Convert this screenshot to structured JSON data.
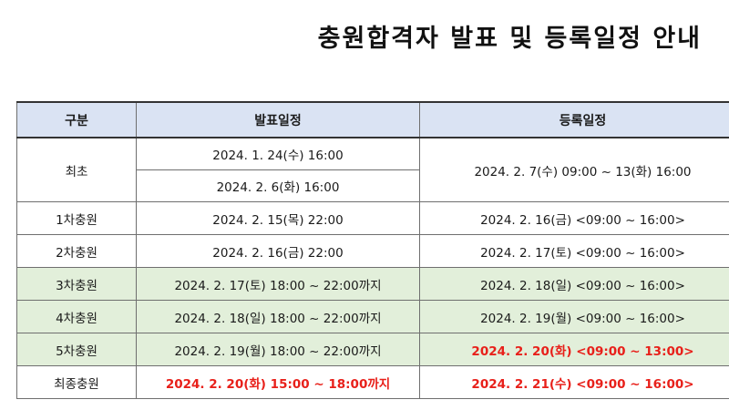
{
  "title": "충원합격자 발표 및 등록일정 안내",
  "table": {
    "headers": [
      "구분",
      "발표일정",
      "등록일정"
    ],
    "rows": [
      {
        "category": "최초",
        "announcements": [
          "2024. 1. 24(수) 16:00",
          "2024. 2. 6(화) 16:00"
        ],
        "registration": "2024. 2. 7(수) 09:00 ~ 13(화) 16:00"
      },
      {
        "category": "1차충원",
        "announcement": "2024. 2. 15(목) 22:00",
        "registration": "2024. 2. 16(금) <09:00 ~ 16:00>"
      },
      {
        "category": "2차충원",
        "announcement": "2024. 2. 16(금) 22:00",
        "registration": "2024. 2. 17(토) <09:00 ~ 16:00>"
      },
      {
        "category": "3차충원",
        "announcement": "2024. 2. 17(토) 18:00 ~ 22:00까지",
        "registration": "2024. 2. 18(일) <09:00 ~ 16:00>"
      },
      {
        "category": "4차충원",
        "announcement": "2024. 2. 18(일) 18:00 ~ 22:00까지",
        "registration": "2024. 2. 19(월) <09:00 ~ 16:00>"
      },
      {
        "category": "5차충원",
        "announcement": "2024. 2. 19(월) 18:00 ~ 22:00까지",
        "registration": "2024. 2. 20(화) <09:00 ~ 13:00>"
      },
      {
        "category": "최종충원",
        "announcement": "2024. 2. 20(화) 15:00 ~ 18:00까지",
        "registration": "2024. 2. 21(수) <09:00 ~ 16:00>"
      }
    ]
  },
  "colors": {
    "header_background": "#dae3f3",
    "highlight_row_background": "#e2efda",
    "emphasis_text": "#e8201a"
  }
}
